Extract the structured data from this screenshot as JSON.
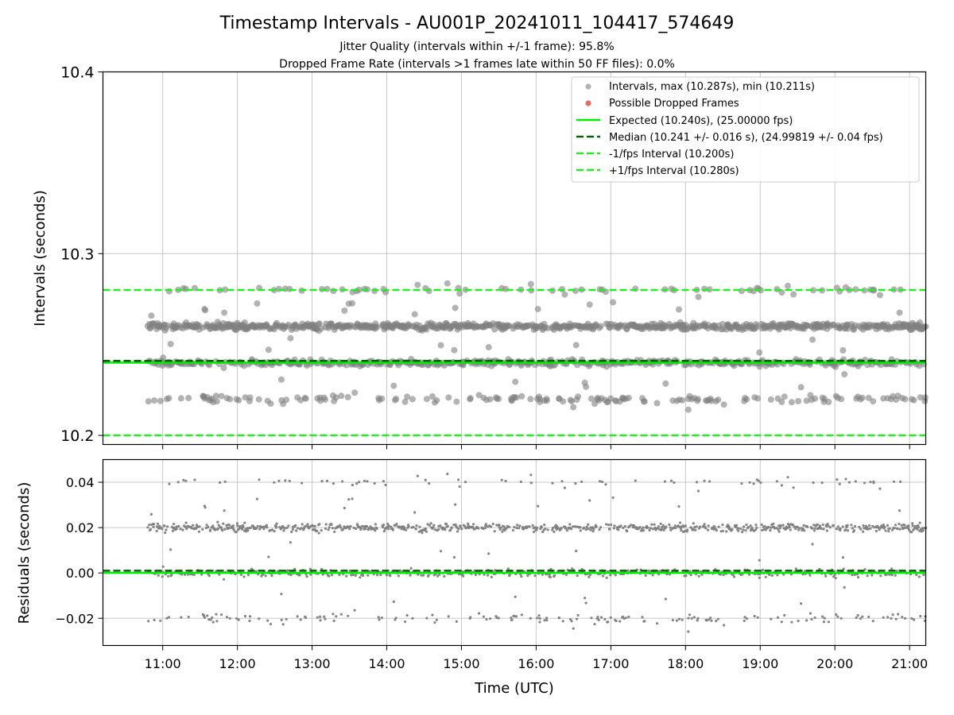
{
  "figure": {
    "title": "Timestamp Intervals - AU001P_20241011_104417_574649",
    "subtitle_1": "Jitter Quality (intervals within +/-1 frame): 95.8%",
    "subtitle_2": "Dropped Frame Rate (intervals >1 frames late within 50 FF files): 0.0%",
    "xlabel": "Time (UTC)"
  },
  "colors": {
    "points": "#808080",
    "dropped": "#e8453c",
    "expected": "#00ee00",
    "median": "#006400",
    "bounds": "#22ee22",
    "grid": "#b0b0b0"
  },
  "chart_data": [
    {
      "type": "scatter",
      "panel": "intervals",
      "ylabel": "Intervals (seconds)",
      "xlim": [
        "10:12",
        "21:13"
      ],
      "ylim": [
        10.195,
        10.4
      ],
      "x_ticks": [
        "11:00",
        "12:00",
        "13:00",
        "14:00",
        "15:00",
        "16:00",
        "17:00",
        "18:00",
        "19:00",
        "20:00",
        "21:00"
      ],
      "y_ticks": [
        "10.2",
        "10.3",
        "10.4"
      ],
      "grid": true,
      "legend_placement": "top-right",
      "time_range": [
        "10:48",
        "21:13"
      ],
      "point_clusters_s": [
        10.22,
        10.24,
        10.26,
        10.28
      ],
      "max_s": 10.287,
      "min_s": 10.211,
      "lines": [
        {
          "name": "Expected (10.240s), (25.00000 fps)",
          "y": 10.24,
          "style": "solid"
        },
        {
          "name": "Median (10.241 +/- 0.016 s), (24.99819 +/- 0.04 fps)",
          "y": 10.241,
          "style": "dashed"
        },
        {
          "name": "-1/fps Interval (10.200s)",
          "y": 10.2,
          "style": "dashed"
        },
        {
          "name": "+1/fps Interval (10.280s)",
          "y": 10.28,
          "style": "dashed"
        }
      ],
      "legend": [
        "Intervals, max (10.287s), min (10.211s)",
        "Possible Dropped Frames",
        "Expected (10.240s), (25.00000 fps)",
        "Median (10.241 +/- 0.016 s), (24.99819 +/- 0.04 fps)",
        "-1/fps Interval (10.200s)",
        "+1/fps Interval (10.280s)"
      ]
    },
    {
      "type": "scatter",
      "panel": "residuals",
      "ylabel": "Residuals (seconds)",
      "xlim": [
        "10:12",
        "21:13"
      ],
      "ylim": [
        -0.032,
        0.05
      ],
      "y_ticks": [
        "0.04",
        "0.02",
        "0.00",
        "−0.02"
      ],
      "grid": true,
      "point_clusters_s": [
        -0.02,
        0.0,
        0.02,
        0.04
      ],
      "lines": [
        {
          "name": "expected",
          "y": 0.0,
          "style": "solid"
        },
        {
          "name": "median",
          "y": 0.001,
          "style": "dashed"
        }
      ]
    }
  ]
}
